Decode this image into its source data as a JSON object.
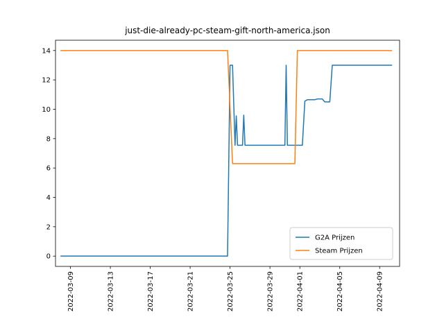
{
  "chart_data": {
    "type": "line",
    "title": "just-die-already-pc-steam-gift-north-america.json",
    "xlabel": "",
    "ylabel": "",
    "x_axis_kind": "date",
    "xlim": [
      "2022-03-07T12:00",
      "2022-04-11T00:00"
    ],
    "ylim": [
      -0.7,
      14.7
    ],
    "x_ticks": [
      "2022-03-09",
      "2022-03-13",
      "2022-03-17",
      "2022-03-21",
      "2022-03-25",
      "2022-03-29",
      "2022-04-01",
      "2022-04-05",
      "2022-04-09"
    ],
    "y_ticks": [
      0,
      2,
      4,
      6,
      8,
      10,
      12,
      14
    ],
    "legend": {
      "position": "lower-right"
    },
    "grid": false,
    "series": [
      {
        "name": "G2A Prijzen",
        "color": "#1f77b4",
        "points": [
          [
            "2022-03-08T00:00",
            0
          ],
          [
            "2022-03-24T18:00",
            0
          ],
          [
            "2022-03-25T00:00",
            13
          ],
          [
            "2022-03-25T06:00",
            13
          ],
          [
            "2022-03-25T12:00",
            7.55
          ],
          [
            "2022-03-25T15:00",
            9.55
          ],
          [
            "2022-03-25T18:00",
            7.55
          ],
          [
            "2022-03-26T06:00",
            7.55
          ],
          [
            "2022-03-26T09:00",
            9.6
          ],
          [
            "2022-03-26T12:00",
            7.55
          ],
          [
            "2022-03-30T12:00",
            7.55
          ],
          [
            "2022-03-30T15:00",
            13
          ],
          [
            "2022-03-30T18:00",
            7.55
          ],
          [
            "2022-03-31T12:00",
            7.55
          ],
          [
            "2022-04-01T06:00",
            7.55
          ],
          [
            "2022-04-01T12:00",
            10.55
          ],
          [
            "2022-04-01T18:00",
            10.65
          ],
          [
            "2022-04-02T12:00",
            10.65
          ],
          [
            "2022-04-02T18:00",
            10.7
          ],
          [
            "2022-04-03T06:00",
            10.7
          ],
          [
            "2022-04-03T12:00",
            10.5
          ],
          [
            "2022-04-04T00:00",
            10.5
          ],
          [
            "2022-04-04T06:00",
            13
          ],
          [
            "2022-04-10T06:00",
            13
          ]
        ]
      },
      {
        "name": "Steam Prijzen",
        "color": "#ff7f0e",
        "points": [
          [
            "2022-03-08T00:00",
            14
          ],
          [
            "2022-03-24T18:00",
            14
          ],
          [
            "2022-03-25T06:00",
            6.3
          ],
          [
            "2022-03-31T12:00",
            6.3
          ],
          [
            "2022-03-31T18:00",
            14
          ],
          [
            "2022-04-10T06:00",
            14
          ]
        ]
      }
    ]
  }
}
